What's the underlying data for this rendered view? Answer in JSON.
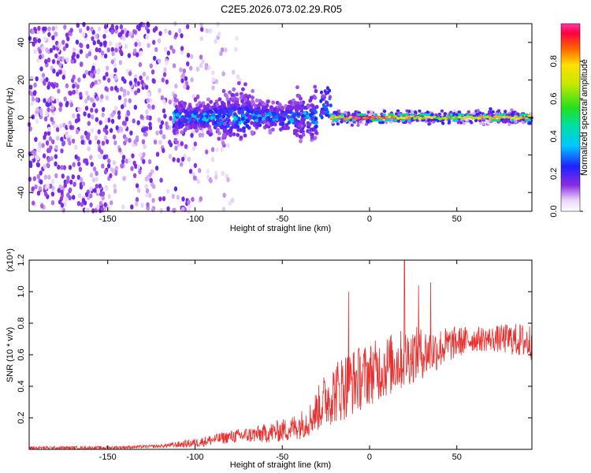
{
  "title": "C2E5.2026.073.02.29.R05",
  "chart_data": [
    {
      "type": "heatmap",
      "xlabel": "Height of straight line (km)",
      "ylabel": "Frequency (Hz)",
      "xlim": [
        -195,
        93
      ],
      "ylim": [
        -50,
        50
      ],
      "xticks": [
        -150,
        -100,
        -50,
        0,
        50
      ],
      "yticks": [
        -40,
        -20,
        0,
        20,
        40
      ],
      "colorbar": {
        "label": "Normalized spectral amplitude",
        "range": [
          0,
          1
        ],
        "ticks": [
          0.0,
          0.2,
          0.4,
          0.6,
          0.8
        ]
      },
      "features": {
        "noise_region_x": [
          -195,
          -105
        ],
        "broad_band_x": [
          -112,
          -30
        ],
        "broad_band_freq_halfwidth": 8,
        "narrow_line_x": [
          -22,
          93
        ],
        "narrow_line_freq": 0
      }
    },
    {
      "type": "line",
      "xlabel": "Height of straight line (km)",
      "ylabel": "SNR (10 * v/v)",
      "y_multiplier": "(x10⁴)",
      "xlim": [
        -195,
        93
      ],
      "ylim": [
        0,
        1.2
      ],
      "xticks": [
        -150,
        -100,
        -50,
        0,
        50
      ],
      "yticks": [
        0.2,
        0.4,
        0.6,
        0.8,
        1.0,
        1.2
      ],
      "color": "#e8302f",
      "envelope": {
        "x": [
          -195,
          -150,
          -120,
          -100,
          -80,
          -60,
          -45,
          -35,
          -25,
          -15,
          0,
          15,
          25,
          35,
          50,
          60,
          70,
          80,
          93
        ],
        "mean": [
          0.01,
          0.01,
          0.02,
          0.04,
          0.08,
          0.1,
          0.13,
          0.18,
          0.32,
          0.4,
          0.48,
          0.55,
          0.6,
          0.62,
          0.68,
          0.7,
          0.7,
          0.7,
          0.68
        ],
        "amp": [
          0.01,
          0.01,
          0.01,
          0.03,
          0.04,
          0.06,
          0.08,
          0.1,
          0.18,
          0.22,
          0.2,
          0.2,
          0.18,
          0.15,
          0.1,
          0.08,
          0.08,
          0.1,
          0.12
        ]
      },
      "peaks": [
        [
          -12,
          1.0
        ],
        [
          20,
          1.2
        ],
        [
          28,
          1.04
        ],
        [
          35,
          1.06
        ]
      ]
    }
  ]
}
